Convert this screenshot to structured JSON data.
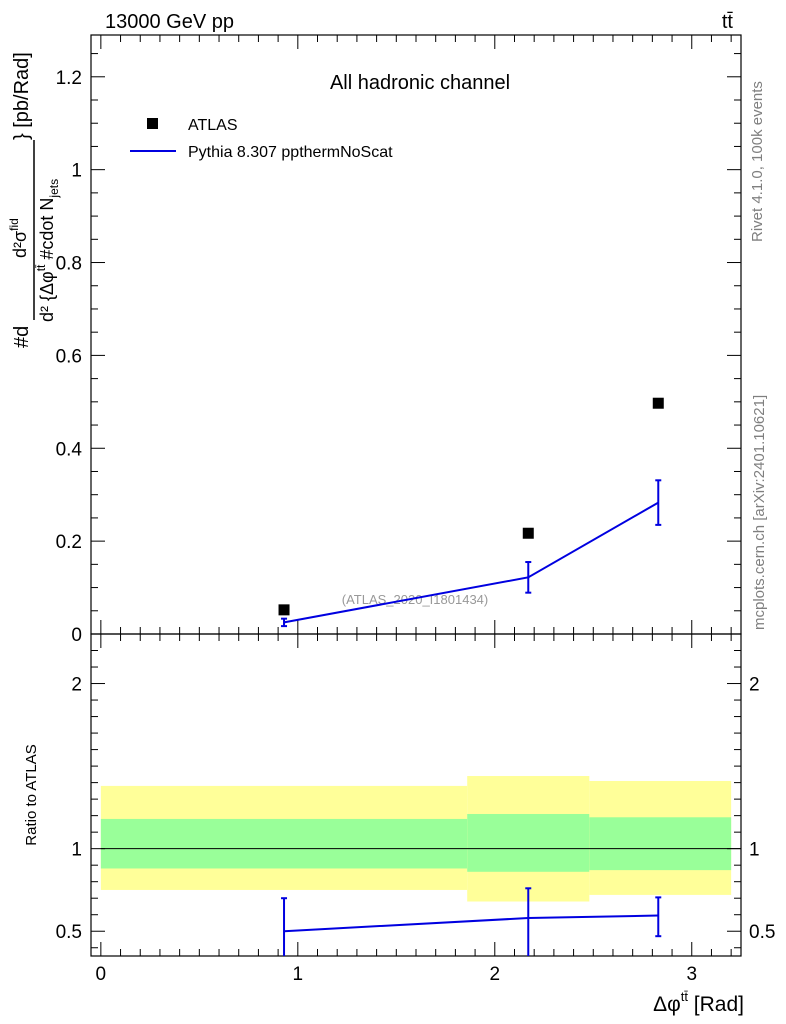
{
  "header": {
    "energy_label": "13000 GeV pp",
    "process_label": "tt̄"
  },
  "side_text": {
    "rivet": "Rivet 4.1.0,  100k events",
    "mcplots": "mcplots.cern.ch [arXiv:2401.10621]"
  },
  "chart_data": [
    {
      "type": "scatter",
      "panel": "main",
      "title": "All hadronic channel",
      "watermark": "(ATLAS_2020_I1801434)",
      "ylabel": "#d d²σ^{fid} / d² {Δφ^{tt̄} #cdot N_{jets}} [pb/Rad]",
      "ylabel_display": {
        "top": "#d",
        "numerator": "d²σ",
        "numerator_sup": "fid",
        "denominator": "d² {Δφ",
        "denominator_sup": "tt̄",
        "denominator_rest": " #cdot N",
        "denominator_sub": "jets",
        "unit": "} [pb/Rad]"
      },
      "xlim": [
        -0.05,
        3.25
      ],
      "ylim": [
        0,
        1.29
      ],
      "y_ticks": [
        0,
        0.2,
        0.4,
        0.6,
        0.8,
        1,
        1.2
      ],
      "y_tick_labels": [
        "0",
        "0.2",
        "0.4",
        "0.6",
        "0.8",
        "1",
        "1.2"
      ],
      "legend_position": "top-left",
      "series": [
        {
          "name": "ATLAS",
          "style": "markers",
          "color": "#000000",
          "x": [
            0.93,
            2.17,
            2.83
          ],
          "y": [
            0.052,
            0.217,
            0.497
          ]
        },
        {
          "name": "Pythia 8.307 ppthermNoScat",
          "style": "line",
          "color": "#0000e0",
          "x": [
            0.93,
            2.17,
            2.83
          ],
          "y": [
            0.025,
            0.122,
            0.283
          ],
          "yerr": [
            0.008,
            0.033,
            0.048
          ]
        }
      ]
    },
    {
      "type": "line",
      "panel": "ratio",
      "ylabel": "Ratio to ATLAS",
      "xlabel": "Δφ^{tt̄} [Rad]",
      "xlabel_display": {
        "main": "Δφ",
        "sup": "tt̄",
        "unit": " [Rad]"
      },
      "xlim": [
        -0.05,
        3.25
      ],
      "ylim": [
        0.35,
        2.3
      ],
      "x_ticks": [
        0,
        1,
        2,
        3
      ],
      "x_tick_labels": [
        "0",
        "1",
        "2",
        "3"
      ],
      "y_ticks": [
        0.5,
        1,
        2
      ],
      "y_tick_labels": [
        "0.5",
        "1",
        "2"
      ],
      "bands": [
        {
          "x_lo": 0.0,
          "x_hi": 1.86,
          "inner": [
            0.88,
            1.18
          ],
          "outer": [
            0.75,
            1.38
          ]
        },
        {
          "x_lo": 1.86,
          "x_hi": 2.48,
          "inner": [
            0.86,
            1.21
          ],
          "outer": [
            0.68,
            1.44
          ]
        },
        {
          "x_lo": 2.48,
          "x_hi": 3.2,
          "inner": [
            0.87,
            1.19
          ],
          "outer": [
            0.72,
            1.41
          ]
        }
      ],
      "band_colors": {
        "outer": "#ffff99",
        "inner": "#99ff99"
      },
      "series": [
        {
          "name": "Pythia 8.307 ppthermNoScat",
          "color": "#0000e0",
          "x": [
            0.93,
            2.17,
            2.83
          ],
          "y": [
            0.5,
            0.58,
            0.595
          ],
          "yerr_lo": [
            0.25,
            0.24,
            0.125
          ],
          "yerr_hi": [
            0.2,
            0.18,
            0.11
          ]
        }
      ]
    }
  ]
}
